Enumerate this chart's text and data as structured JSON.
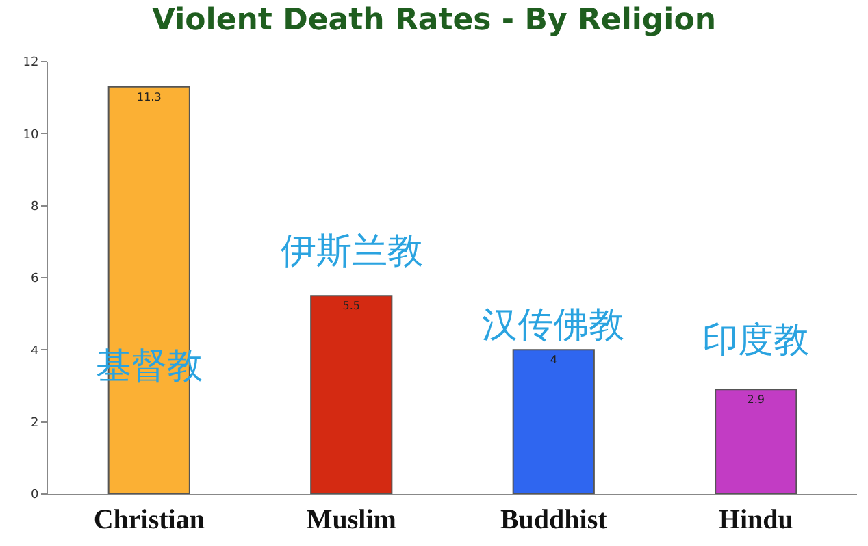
{
  "chart_data": {
    "type": "bar",
    "title": "Violent Death Rates - By Religion",
    "categories": [
      "Christian",
      "Muslim",
      "Buddhist",
      "Hindu"
    ],
    "values": [
      11.3,
      5.5,
      4,
      2.9
    ],
    "colors": [
      "#fbb034",
      "#d42a12",
      "#2f66f0",
      "#c23cc4"
    ],
    "ylim": [
      0,
      12
    ],
    "yticks": [
      0,
      2,
      4,
      6,
      8,
      10,
      12
    ],
    "data_labels": true,
    "annotations": [
      "基督教",
      "伊斯兰教",
      "汉传佛教",
      "印度教"
    ]
  }
}
